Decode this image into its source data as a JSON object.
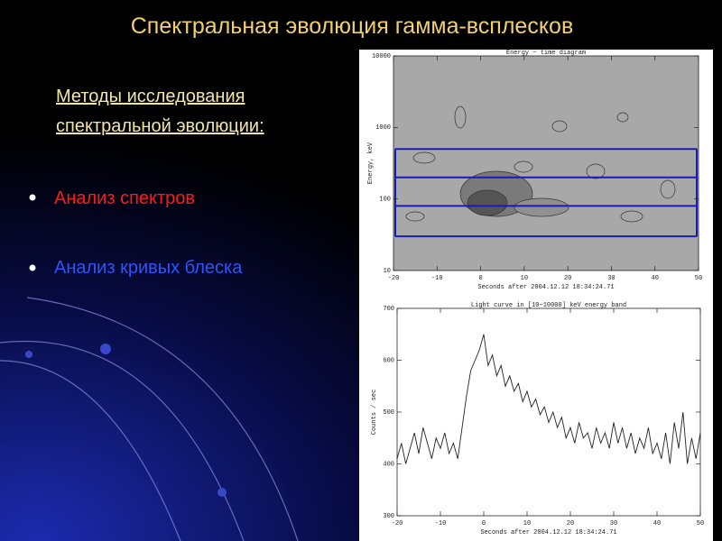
{
  "slide": {
    "title": "Спектральная эволюция гамма-всплесков",
    "subtitle": [
      "Методы исследования",
      "спектральной эволюции:"
    ],
    "bullets": [
      "Анализ спектров",
      "Анализ кривых блеска"
    ]
  },
  "chart_data": [
    {
      "type": "contour",
      "title": "Energy − time diagram",
      "xlabel": "Seconds after 2004.12.12  18:34:24.71",
      "ylabel": "Energy, keV",
      "xlim": [
        -20,
        50
      ],
      "xticks": [
        -20,
        -10,
        0,
        10,
        20,
        30,
        40,
        50
      ],
      "ylim": [
        10,
        10000
      ],
      "yticks": [
        10,
        100,
        1000,
        10000
      ],
      "log_y": true,
      "bands": [
        30,
        80,
        200,
        500
      ],
      "band_color": "#1a1ab4"
    },
    {
      "type": "line",
      "title": "Light curve in [10−10000] keV energy band",
      "xlabel": "Seconds after 2004.12.12  18:34:24.71",
      "ylabel": "Counts / sec",
      "xlim": [
        -20,
        50
      ],
      "xticks": [
        -20,
        -10,
        0,
        10,
        20,
        30,
        40,
        50
      ],
      "ylim": [
        300,
        700
      ],
      "yticks": [
        300,
        400,
        500,
        600,
        700
      ],
      "color": "#222222",
      "x": [
        -20,
        -19,
        -18,
        -17,
        -16,
        -15,
        -14,
        -13,
        -12,
        -11,
        -10,
        -9,
        -8,
        -7,
        -6,
        -5,
        -4,
        -3,
        -2,
        -1,
        0,
        1,
        2,
        3,
        4,
        5,
        6,
        7,
        8,
        9,
        10,
        11,
        12,
        13,
        14,
        15,
        16,
        17,
        18,
        19,
        20,
        21,
        22,
        23,
        24,
        25,
        26,
        27,
        28,
        29,
        30,
        31,
        32,
        33,
        34,
        35,
        36,
        37,
        38,
        39,
        40,
        41,
        42,
        43,
        44,
        45,
        46,
        47,
        48,
        49,
        50
      ],
      "values": [
        410,
        440,
        400,
        430,
        460,
        420,
        470,
        440,
        410,
        450,
        430,
        460,
        420,
        440,
        410,
        470,
        530,
        580,
        600,
        620,
        650,
        590,
        610,
        570,
        590,
        550,
        570,
        540,
        555,
        520,
        540,
        510,
        525,
        495,
        510,
        480,
        500,
        470,
        490,
        450,
        470,
        440,
        480,
        450,
        460,
        430,
        470,
        440,
        460,
        430,
        480,
        440,
        470,
        430,
        460,
        420,
        450,
        430,
        470,
        420,
        440,
        410,
        460,
        400,
        480,
        430,
        500,
        400,
        450,
        410,
        460
      ]
    }
  ]
}
